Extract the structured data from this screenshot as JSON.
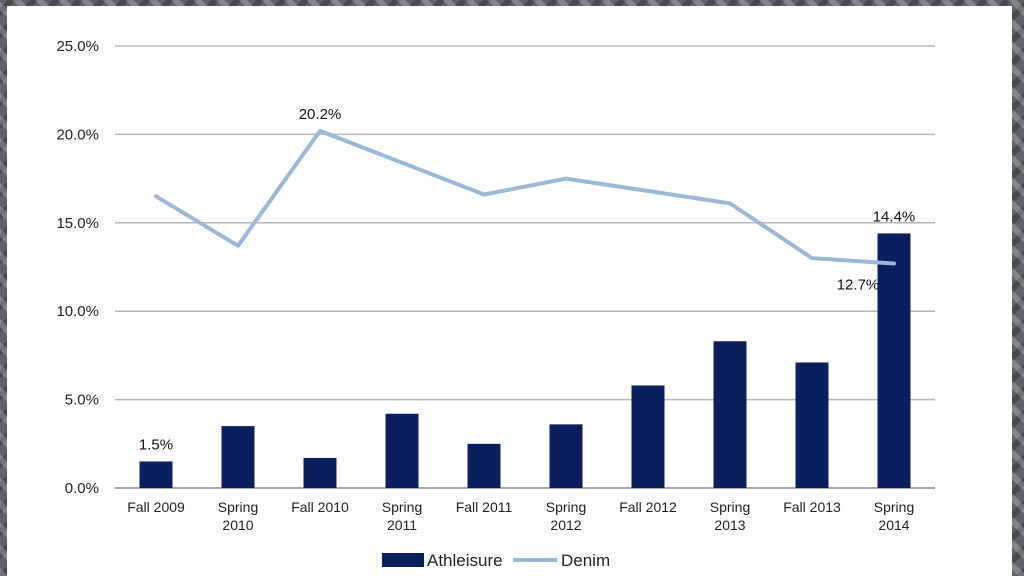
{
  "chart_data": {
    "type": "bar",
    "categories": [
      [
        "Fall 2009"
      ],
      [
        "Spring",
        "2010"
      ],
      [
        "Fall 2010"
      ],
      [
        "Spring",
        "2011"
      ],
      [
        "Fall 2011"
      ],
      [
        "Spring",
        "2012"
      ],
      [
        "Fall 2012"
      ],
      [
        "Spring",
        "2013"
      ],
      [
        "Fall 2013"
      ],
      [
        "Spring",
        "2014"
      ]
    ],
    "series": [
      {
        "name": "Athleisure",
        "kind": "bar",
        "color": "#0b1f5e",
        "values": [
          1.5,
          3.5,
          1.7,
          4.2,
          2.5,
          3.6,
          5.8,
          8.3,
          7.1,
          14.4
        ]
      },
      {
        "name": "Denim",
        "kind": "line",
        "color": "#9bb8d8",
        "values": [
          16.5,
          13.7,
          20.2,
          18.4,
          16.6,
          17.5,
          16.8,
          16.1,
          13.0,
          12.7
        ]
      }
    ],
    "data_labels": [
      {
        "series": 0,
        "index": 0,
        "text": "1.5%"
      },
      {
        "series": 1,
        "index": 2,
        "text": "20.2%"
      },
      {
        "series": 0,
        "index": 9,
        "text": "14.4%"
      },
      {
        "series": 1,
        "index": 9,
        "text": "12.7%"
      }
    ],
    "y_ticks": [
      "0.0%",
      "5.0%",
      "10.0%",
      "15.0%",
      "20.0%",
      "25.0%"
    ],
    "ylim": [
      0,
      25
    ],
    "grid": true,
    "legend": "bottom-center"
  }
}
